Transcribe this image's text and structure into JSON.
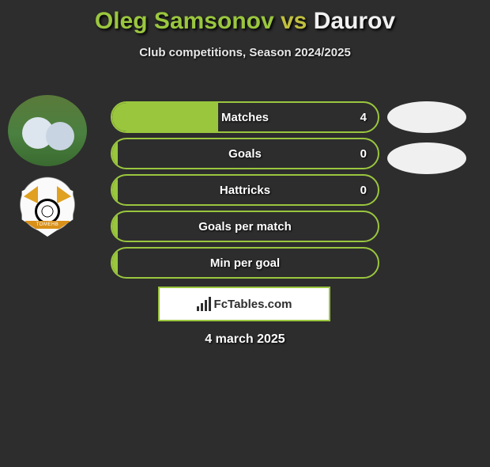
{
  "title": {
    "player1": "Oleg Samsonov",
    "vs": "vs",
    "player2": "Daurov"
  },
  "subtitle": "Club competitions, Season 2024/2025",
  "crest_band": "TOMEHB",
  "stats": [
    {
      "label": "Matches",
      "value_left": "4",
      "fill_pct": 40,
      "right_pill": true
    },
    {
      "label": "Goals",
      "value_left": "0",
      "fill_pct": 2,
      "right_pill": true
    },
    {
      "label": "Hattricks",
      "value_left": "0",
      "fill_pct": 2,
      "right_pill": false
    },
    {
      "label": "Goals per match",
      "value_left": "",
      "fill_pct": 2,
      "right_pill": false
    },
    {
      "label": "Min per goal",
      "value_left": "",
      "fill_pct": 2,
      "right_pill": false
    }
  ],
  "logo_text": "FcTables.com",
  "date_text": "4 march 2025",
  "colors": {
    "accent": "#9ac63e",
    "background": "#2d2d2d",
    "white_pill": "#f0f0f0",
    "text": "#ffffff"
  }
}
